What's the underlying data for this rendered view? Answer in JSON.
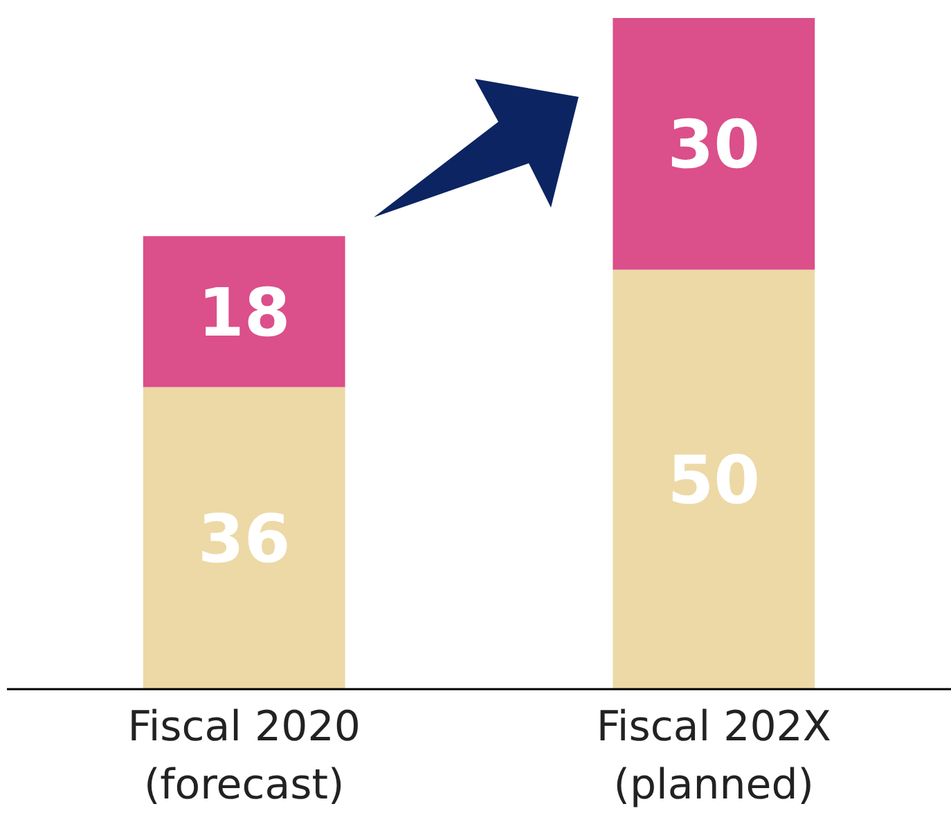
{
  "chart_data": {
    "type": "bar",
    "stacked": true,
    "data_labels": true,
    "categories": [
      "Fiscal 2020\n(forecast)",
      "Fiscal 202X\n(planned)"
    ],
    "series": [
      {
        "color": "#ecd9a6",
        "values": [
          36,
          50
        ]
      },
      {
        "color": "#db4f8a",
        "values": [
          18,
          30
        ]
      }
    ]
  }
}
